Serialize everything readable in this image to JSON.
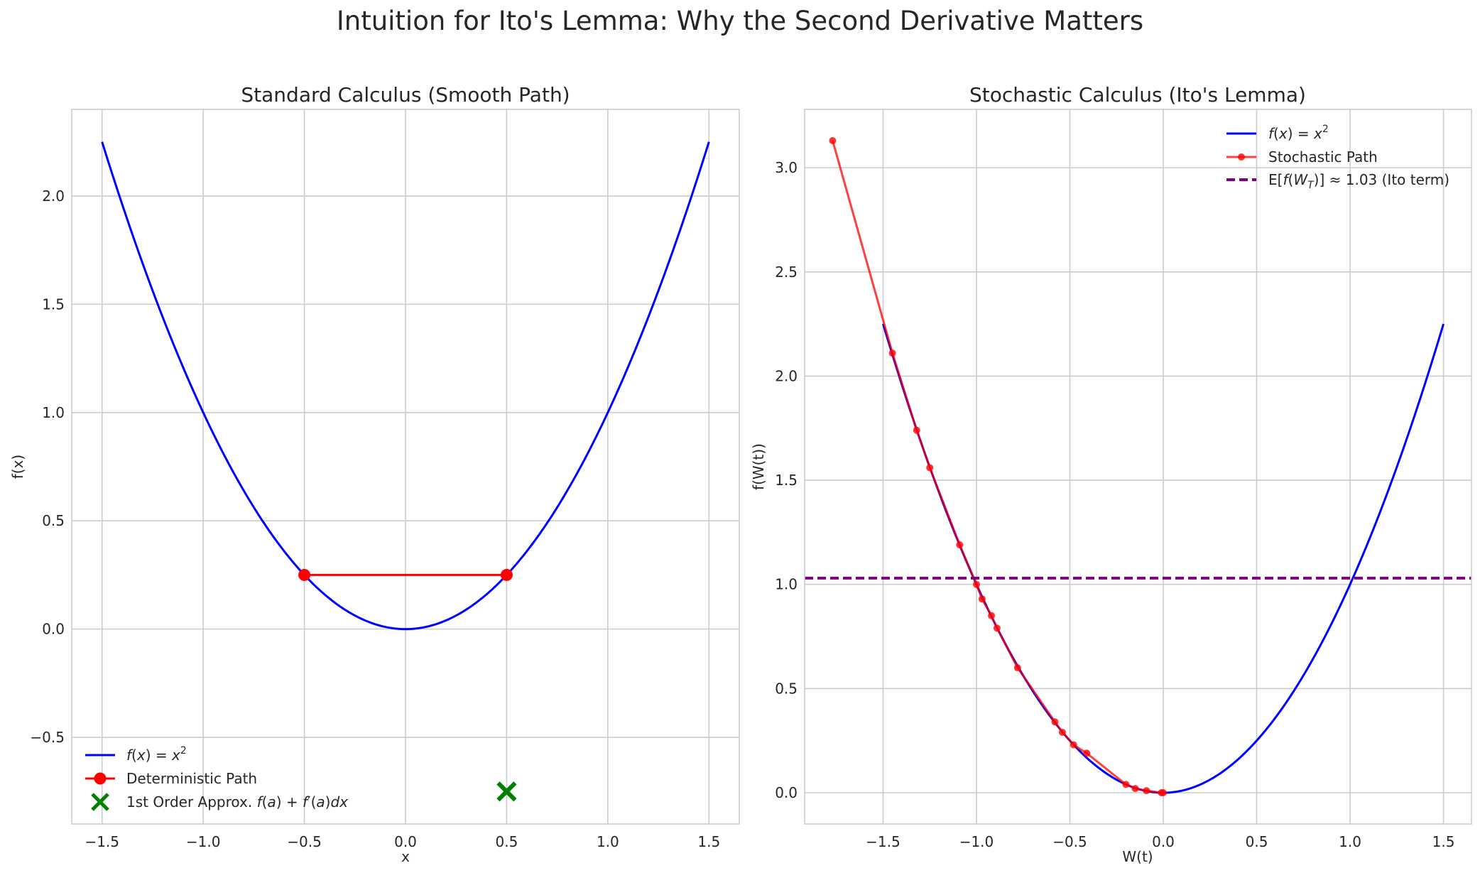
{
  "figure": {
    "title": "Intuition for Ito's Lemma: Why the Second Derivative Matters"
  },
  "chart_data": [
    {
      "type": "line",
      "title": "Standard Calculus (Smooth Path)",
      "xlabel": "x",
      "ylabel": "f(x)",
      "xlim": [
        -1.65,
        1.65
      ],
      "ylim": [
        -0.9,
        2.4
      ],
      "xticks": [
        -1.5,
        -1.0,
        -0.5,
        0.0,
        0.5,
        1.0,
        1.5
      ],
      "xtick_labels": [
        "−1.5",
        "−1.0",
        "−0.5",
        "0.0",
        "0.5",
        "1.0",
        "1.5"
      ],
      "yticks": [
        -0.5,
        0.0,
        0.5,
        1.0,
        1.5,
        2.0
      ],
      "ytick_labels": [
        "−0.5",
        "0.0",
        "0.5",
        "1.0",
        "1.5",
        "2.0"
      ],
      "grid": true,
      "legend_position": "lower-left",
      "series": [
        {
          "name": "f(x) = x²",
          "kind": "function",
          "function": "x^2",
          "domain": [
            -1.5,
            1.5
          ],
          "color": "#0000ff"
        },
        {
          "name": "Deterministic Path",
          "kind": "line-markers",
          "x": [
            -0.5,
            0.5
          ],
          "y": [
            0.25,
            0.25
          ],
          "color": "#ff0000"
        },
        {
          "name": "1st Order Approx. f(a) + f′(a)dx",
          "kind": "marker-x",
          "x": [
            0.5
          ],
          "y": [
            -0.75
          ],
          "color": "#008000"
        }
      ]
    },
    {
      "type": "line",
      "title": "Stochastic Calculus (Ito's Lemma)",
      "xlabel": "W(t)",
      "ylabel": "f(W(t))",
      "xlim": [
        -1.92,
        1.65
      ],
      "ylim": [
        -0.15,
        3.28
      ],
      "xticks": [
        -1.5,
        -1.0,
        -0.5,
        0.0,
        0.5,
        1.0,
        1.5
      ],
      "xtick_labels": [
        "−1.5",
        "−1.0",
        "−0.5",
        "0.0",
        "0.5",
        "1.0",
        "1.5"
      ],
      "yticks": [
        0.0,
        0.5,
        1.0,
        1.5,
        2.0,
        2.5,
        3.0
      ],
      "ytick_labels": [
        "0.0",
        "0.5",
        "1.0",
        "1.5",
        "2.0",
        "2.5",
        "3.0"
      ],
      "grid": true,
      "legend_position": "upper-right",
      "series": [
        {
          "name": "f(x) = x²",
          "kind": "function",
          "function": "x^2",
          "domain": [
            -1.5,
            1.5
          ],
          "color": "#0000ff"
        },
        {
          "name": "Stochastic Path",
          "kind": "line-markers",
          "color": "#ff0000",
          "x": [
            0.0,
            -0.01,
            -0.09,
            -0.15,
            -0.2,
            -0.41,
            -0.48,
            -0.54,
            -0.58,
            -0.78,
            -0.89,
            -0.92,
            -0.97,
            -1.0,
            -1.09,
            -1.25,
            -1.32,
            -1.45,
            -1.77
          ],
          "y": [
            0.0,
            0.0,
            0.01,
            0.02,
            0.04,
            0.19,
            0.23,
            0.29,
            0.34,
            0.6,
            0.79,
            0.85,
            0.93,
            1.0,
            1.19,
            1.56,
            1.74,
            2.11,
            3.13
          ]
        },
        {
          "name": "E[f(W_T)] ≈ 1.03 (Ito term)",
          "kind": "hline",
          "y": 1.03,
          "color": "#800080"
        }
      ]
    }
  ]
}
